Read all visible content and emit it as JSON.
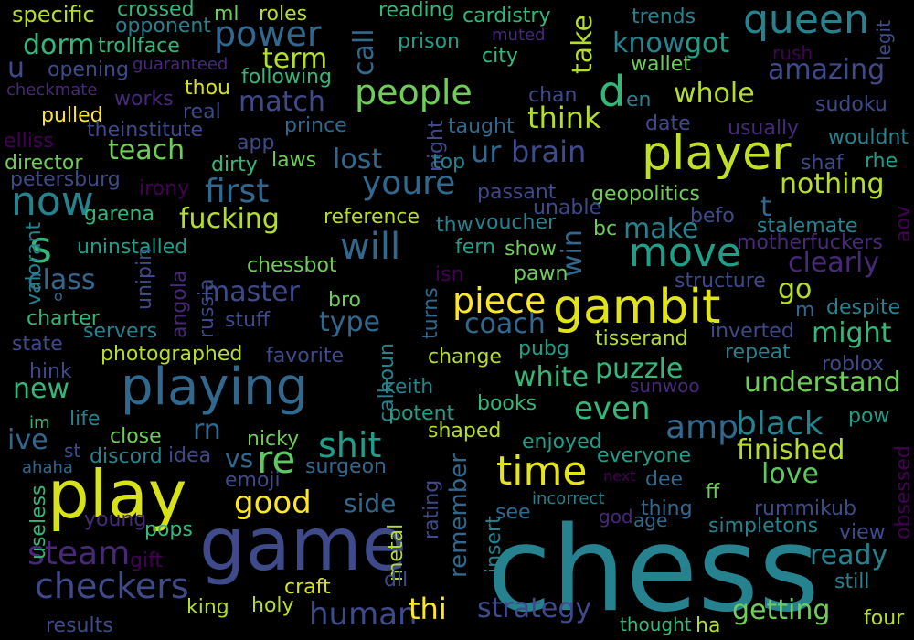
{
  "palette": {
    "purple-dark": "#440154",
    "purple": "#482878",
    "indigo": "#3e4a89",
    "blue": "#31688e",
    "teal": "#26828e",
    "teal-green": "#1f9e89",
    "green": "#35b779",
    "lime": "#6ece58",
    "yellow-green": "#b5de2b",
    "yellow": "#fde725"
  },
  "words": [
    {
      "text": "chess",
      "color": "#26828e"
    },
    {
      "text": "game",
      "color": "#3e4a89"
    },
    {
      "text": "play",
      "color": "#d8e219"
    },
    {
      "text": "playing",
      "color": "#31688e"
    },
    {
      "text": "player",
      "color": "#c0df25"
    },
    {
      "text": "gambit",
      "color": "#e2e418"
    },
    {
      "text": "time",
      "color": "#e5e419"
    },
    {
      "text": "move",
      "color": "#1f9e89"
    },
    {
      "text": "queen",
      "color": "#26828e"
    },
    {
      "text": "s",
      "color": "#35b779"
    },
    {
      "text": "people",
      "color": "#6ece58"
    },
    {
      "text": "now",
      "color": "#26828e"
    },
    {
      "text": "piece",
      "color": "#fde725"
    },
    {
      "text": "d",
      "color": "#35b779"
    },
    {
      "text": "will",
      "color": "#31688e"
    },
    {
      "text": "power",
      "color": "#31688e"
    },
    {
      "text": "checkers",
      "color": "#3e4a89"
    },
    {
      "text": "shit",
      "color": "#1f9e89"
    },
    {
      "text": "human",
      "color": "#3e4a89"
    },
    {
      "text": "black",
      "color": "#26828e"
    },
    {
      "text": "re",
      "color": "#5ec962"
    },
    {
      "text": "steam",
      "color": "#482878"
    },
    {
      "text": "first",
      "color": "#31688e"
    },
    {
      "text": "amp",
      "color": "#31688e"
    },
    {
      "text": "youre",
      "color": "#31688e"
    },
    {
      "text": "good",
      "color": "#fde725"
    },
    {
      "text": "strategy",
      "color": "#3e4a89"
    },
    {
      "text": "understand",
      "color": "#6ece58"
    },
    {
      "text": "getting",
      "color": "#6ece58"
    },
    {
      "text": "even",
      "color": "#35b779"
    },
    {
      "text": "finished",
      "color": "#b5de2b"
    },
    {
      "text": "coach",
      "color": "#31688e"
    },
    {
      "text": "puzzle",
      "color": "#35b779"
    },
    {
      "text": "thi",
      "color": "#fde725"
    },
    {
      "text": "might",
      "color": "#35b779"
    },
    {
      "text": "love",
      "color": "#5ec962"
    },
    {
      "text": "think",
      "color": "#b5de2b"
    },
    {
      "text": "nothing",
      "color": "#b5de2b"
    },
    {
      "text": "teach",
      "color": "#6ece58"
    },
    {
      "text": "lost",
      "color": "#31688e"
    },
    {
      "text": "ur",
      "color": "#31688e"
    },
    {
      "text": "brain",
      "color": "#3e4a89"
    },
    {
      "text": "make",
      "color": "#26828e"
    },
    {
      "text": "class",
      "color": "#31688e"
    },
    {
      "text": "master",
      "color": "#3e4a89"
    },
    {
      "text": "fucking",
      "color": "#b5de2b"
    },
    {
      "text": "side",
      "color": "#31688e"
    },
    {
      "text": "white",
      "color": "#35b779"
    },
    {
      "text": "clearly",
      "color": "#482878"
    },
    {
      "text": "ready",
      "color": "#26828e"
    },
    {
      "text": "type",
      "color": "#31688e"
    },
    {
      "text": "amazing",
      "color": "#3e4a89"
    },
    {
      "text": "whole",
      "color": "#b5de2b"
    },
    {
      "text": "match",
      "color": "#3e4a89"
    },
    {
      "text": "term",
      "color": "#b5de2b"
    },
    {
      "text": "dorm",
      "color": "#35b779"
    },
    {
      "text": "know",
      "color": "#26828e"
    },
    {
      "text": "got",
      "color": "#1f9e89"
    },
    {
      "text": "take",
      "color": "#b5de2b"
    },
    {
      "text": "call",
      "color": "#31688e"
    },
    {
      "text": "rn",
      "color": "#31688e"
    },
    {
      "text": "vs",
      "color": "#31688e"
    },
    {
      "text": "go",
      "color": "#b5de2b"
    },
    {
      "text": "win",
      "color": "#31688e"
    },
    {
      "text": "remember",
      "color": "#31688e"
    },
    {
      "text": "new",
      "color": "#35b779"
    },
    {
      "text": "ive",
      "color": "#31688e"
    },
    {
      "text": "u",
      "color": "#3e4a89"
    },
    {
      "text": "t",
      "color": "#31688e"
    },
    {
      "text": "specific",
      "color": "#b5de2b"
    },
    {
      "text": "crossed",
      "color": "#35b779"
    },
    {
      "text": "opponent",
      "color": "#26828e"
    },
    {
      "text": "ml",
      "color": "#6ece58"
    },
    {
      "text": "roles",
      "color": "#b5de2b"
    },
    {
      "text": "reading",
      "color": "#35b779"
    },
    {
      "text": "cardistry",
      "color": "#35b779"
    },
    {
      "text": "trends",
      "color": "#26828e"
    },
    {
      "text": "legit",
      "color": "#3e4a89"
    },
    {
      "text": "trollface",
      "color": "#35b779"
    },
    {
      "text": "prison",
      "color": "#1f9e89"
    },
    {
      "text": "muted",
      "color": "#482878"
    },
    {
      "text": "city",
      "color": "#35b779"
    },
    {
      "text": "rush",
      "color": "#440154"
    },
    {
      "text": "wallet",
      "color": "#6ece58"
    },
    {
      "text": "opening",
      "color": "#3e4a89"
    },
    {
      "text": "guaranteed",
      "color": "#482878"
    },
    {
      "text": "following",
      "color": "#35b779"
    },
    {
      "text": "checkmate",
      "color": "#482878"
    },
    {
      "text": "thou",
      "color": "#d8e219"
    },
    {
      "text": "works",
      "color": "#482878"
    },
    {
      "text": "real",
      "color": "#3e4a89"
    },
    {
      "text": "chan",
      "color": "#3e4a89"
    },
    {
      "text": "en",
      "color": "#26828e"
    },
    {
      "text": "sudoku",
      "color": "#3e4a89"
    },
    {
      "text": "pulled",
      "color": "#fde725"
    },
    {
      "text": "theinstitute",
      "color": "#3e4a89"
    },
    {
      "text": "prince",
      "color": "#31688e"
    },
    {
      "text": "taught",
      "color": "#31688e"
    },
    {
      "text": "date",
      "color": "#3e4a89"
    },
    {
      "text": "usually",
      "color": "#482878"
    },
    {
      "text": "elliss",
      "color": "#440154"
    },
    {
      "text": "app",
      "color": "#3e4a89"
    },
    {
      "text": "night",
      "color": "#3e4a89"
    },
    {
      "text": "wouldnt",
      "color": "#26828e"
    },
    {
      "text": "director",
      "color": "#6ece58"
    },
    {
      "text": "dirty",
      "color": "#35b779"
    },
    {
      "text": "laws",
      "color": "#6ece58"
    },
    {
      "text": "top",
      "color": "#26828e"
    },
    {
      "text": "shaf",
      "color": "#3e4a89"
    },
    {
      "text": "rhe",
      "color": "#1f9e89"
    },
    {
      "text": "petersburg",
      "color": "#3e4a89"
    },
    {
      "text": "irony",
      "color": "#440154"
    },
    {
      "text": "passant",
      "color": "#3e4a89"
    },
    {
      "text": "geopolitics",
      "color": "#6ece58"
    },
    {
      "text": "unable",
      "color": "#3e4a89"
    },
    {
      "text": "garena",
      "color": "#35b779"
    },
    {
      "text": "reference",
      "color": "#b5de2b"
    },
    {
      "text": "thw",
      "color": "#26828e"
    },
    {
      "text": "voucher",
      "color": "#26828e"
    },
    {
      "text": "bc",
      "color": "#6ece58"
    },
    {
      "text": "befo",
      "color": "#3e4a89"
    },
    {
      "text": "stalemate",
      "color": "#26828e"
    },
    {
      "text": "aov",
      "color": "#440154"
    },
    {
      "text": "valorant",
      "color": "#26828e"
    },
    {
      "text": "uninstalled",
      "color": "#1f9e89"
    },
    {
      "text": "fern",
      "color": "#1f9e89"
    },
    {
      "text": "show",
      "color": "#6ece58"
    },
    {
      "text": "motherfuckers",
      "color": "#482878"
    },
    {
      "text": "chessbot",
      "color": "#6ece58"
    },
    {
      "text": "unipin",
      "color": "#3e4a89"
    },
    {
      "text": "angola",
      "color": "#482878"
    },
    {
      "text": "russia",
      "color": "#3e4a89"
    },
    {
      "text": "isn",
      "color": "#440154"
    },
    {
      "text": "pawn",
      "color": "#6ece58"
    },
    {
      "text": "structure",
      "color": "#3e4a89"
    },
    {
      "text": "o",
      "color": "#31688e"
    },
    {
      "text": "bro",
      "color": "#6ece58"
    },
    {
      "text": "turns",
      "color": "#31688e"
    },
    {
      "text": "m",
      "color": "#31688e"
    },
    {
      "text": "despite",
      "color": "#26828e"
    },
    {
      "text": "charter",
      "color": "#35b779"
    },
    {
      "text": "servers",
      "color": "#26828e"
    },
    {
      "text": "stuff",
      "color": "#3e4a89"
    },
    {
      "text": "inverted",
      "color": "#3e4a89"
    },
    {
      "text": "state",
      "color": "#3e4a89"
    },
    {
      "text": "tisserand",
      "color": "#b5de2b"
    },
    {
      "text": "pubg",
      "color": "#1f9e89"
    },
    {
      "text": "photographed",
      "color": "#b5de2b"
    },
    {
      "text": "favorite",
      "color": "#3e4a89"
    },
    {
      "text": "change",
      "color": "#b5de2b"
    },
    {
      "text": "repeat",
      "color": "#26828e"
    },
    {
      "text": "roblox",
      "color": "#3e4a89"
    },
    {
      "text": "hink",
      "color": "#3e4a89"
    },
    {
      "text": "calhoun",
      "color": "#26828e"
    },
    {
      "text": "keith",
      "color": "#26828e"
    },
    {
      "text": "sunwoo",
      "color": "#482878"
    },
    {
      "text": "life",
      "color": "#26828e"
    },
    {
      "text": "potent",
      "color": "#1f9e89"
    },
    {
      "text": "books",
      "color": "#35b779"
    },
    {
      "text": "pow",
      "color": "#1f9e89"
    },
    {
      "text": "im",
      "color": "#35b779"
    },
    {
      "text": "close",
      "color": "#6ece58"
    },
    {
      "text": "nicky",
      "color": "#6ece58"
    },
    {
      "text": "shaped",
      "color": "#b5de2b"
    },
    {
      "text": "enjoyed",
      "color": "#1f9e89"
    },
    {
      "text": "st",
      "color": "#3e4a89"
    },
    {
      "text": "discord",
      "color": "#26828e"
    },
    {
      "text": "idea",
      "color": "#3e4a89"
    },
    {
      "text": "everyone",
      "color": "#1f9e89"
    },
    {
      "text": "ahaha",
      "color": "#31688e"
    },
    {
      "text": "surgeon",
      "color": "#31688e"
    },
    {
      "text": "next",
      "color": "#440154"
    },
    {
      "text": "dee",
      "color": "#31688e"
    },
    {
      "text": "emoji",
      "color": "#3e4a89"
    },
    {
      "text": "incorrect",
      "color": "#26828e"
    },
    {
      "text": "ff",
      "color": "#6ece58"
    },
    {
      "text": "obsessed",
      "color": "#440154"
    },
    {
      "text": "useless",
      "color": "#35b779"
    },
    {
      "text": "young",
      "color": "#482878"
    },
    {
      "text": "rating",
      "color": "#3e4a89"
    },
    {
      "text": "see",
      "color": "#31688e"
    },
    {
      "text": "thing",
      "color": "#31688e"
    },
    {
      "text": "god",
      "color": "#482878"
    },
    {
      "text": "age",
      "color": "#31688e"
    },
    {
      "text": "rummikub",
      "color": "#3e4a89"
    },
    {
      "text": "pops",
      "color": "#35b779"
    },
    {
      "text": "simpletons",
      "color": "#26828e"
    },
    {
      "text": "view",
      "color": "#3e4a89"
    },
    {
      "text": "gift",
      "color": "#440154"
    },
    {
      "text": "metal",
      "color": "#b5de2b"
    },
    {
      "text": "insert",
      "color": "#26828e"
    },
    {
      "text": "craft",
      "color": "#d8e219"
    },
    {
      "text": "dll",
      "color": "#3e4a89"
    },
    {
      "text": "still",
      "color": "#26828e"
    },
    {
      "text": "king",
      "color": "#b5de2b"
    },
    {
      "text": "holy",
      "color": "#b5de2b"
    },
    {
      "text": "four",
      "color": "#b5de2b"
    },
    {
      "text": "results",
      "color": "#3e4a89"
    },
    {
      "text": "thought",
      "color": "#35b779"
    },
    {
      "text": "ha",
      "color": "#b5de2b"
    }
  ]
}
